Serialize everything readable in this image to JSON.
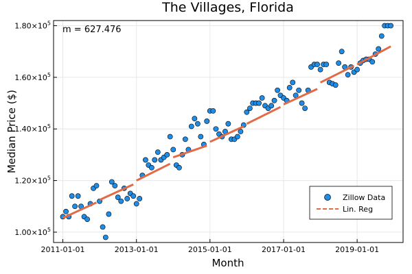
{
  "chart_data": {
    "type": "scatter",
    "title": "The Villages, Florida",
    "xlabel": "Month",
    "ylabel": "Median Price ($)",
    "annotation": "m = 627.476",
    "xlim": [
      "2010-10-01",
      "2020-04-01"
    ],
    "ylim": [
      96000,
      182000
    ],
    "x_ticks": [
      "2011-01-01",
      "2013-01-01",
      "2015-01-01",
      "2017-01-01",
      "2019-01-01"
    ],
    "y_ticks": [
      {
        "value": 100000,
        "mantissa": "1.00",
        "base": "×10",
        "exp": "5"
      },
      {
        "value": 120000,
        "mantissa": "1.20",
        "base": "×10",
        "exp": "5"
      },
      {
        "value": 140000,
        "mantissa": "1.40",
        "base": "×10",
        "exp": "5"
      },
      {
        "value": 160000,
        "mantissa": "1.60",
        "base": "×10",
        "exp": "5"
      },
      {
        "value": 180000,
        "mantissa": "1.80",
        "base": "×10",
        "exp": "5"
      }
    ],
    "grid": true,
    "legend_position": "bottom-right",
    "series": [
      {
        "name": "Zillow Data",
        "kind": "scatter",
        "color": "#1f8ce6",
        "x": [
          "2011-01-01",
          "2011-02-01",
          "2011-03-01",
          "2011-04-01",
          "2011-05-01",
          "2011-06-01",
          "2011-07-01",
          "2011-08-01",
          "2011-09-01",
          "2011-10-01",
          "2011-11-01",
          "2011-12-01",
          "2012-01-01",
          "2012-02-01",
          "2012-03-01",
          "2012-04-01",
          "2012-05-01",
          "2012-06-01",
          "2012-07-01",
          "2012-08-01",
          "2012-09-01",
          "2012-10-01",
          "2012-11-01",
          "2012-12-01",
          "2013-01-01",
          "2013-02-01",
          "2013-03-01",
          "2013-04-01",
          "2013-05-01",
          "2013-06-01",
          "2013-07-01",
          "2013-08-01",
          "2013-09-01",
          "2013-10-01",
          "2013-11-01",
          "2013-12-01",
          "2014-01-01",
          "2014-02-01",
          "2014-03-01",
          "2014-04-01",
          "2014-05-01",
          "2014-06-01",
          "2014-07-01",
          "2014-08-01",
          "2014-09-01",
          "2014-10-01",
          "2014-11-01",
          "2014-12-01",
          "2015-01-01",
          "2015-02-01",
          "2015-03-01",
          "2015-04-01",
          "2015-05-01",
          "2015-06-01",
          "2015-07-01",
          "2015-08-01",
          "2015-09-01",
          "2015-10-01",
          "2015-11-01",
          "2015-12-01",
          "2016-01-01",
          "2016-02-01",
          "2016-03-01",
          "2016-04-01",
          "2016-05-01",
          "2016-06-01",
          "2016-07-01",
          "2016-08-01",
          "2016-09-01",
          "2016-10-01",
          "2016-11-01",
          "2016-12-01",
          "2017-01-01",
          "2017-02-01",
          "2017-03-01",
          "2017-04-01",
          "2017-05-01",
          "2017-06-01",
          "2017-07-01",
          "2017-08-01",
          "2017-09-01",
          "2017-10-01",
          "2017-11-01",
          "2017-12-01",
          "2018-01-01",
          "2018-02-01",
          "2018-03-01",
          "2018-04-01",
          "2018-05-01",
          "2018-06-01",
          "2018-07-01",
          "2018-08-01",
          "2018-09-01",
          "2018-10-01",
          "2018-11-01",
          "2018-12-01",
          "2019-01-01",
          "2019-02-01",
          "2019-03-01",
          "2019-04-01",
          "2019-05-01",
          "2019-06-01",
          "2019-07-01",
          "2019-08-01",
          "2019-09-01",
          "2019-10-01",
          "2019-11-01",
          "2019-12-01"
        ],
        "y": [
          106000,
          108000,
          106000,
          114000,
          110000,
          114000,
          110000,
          106000,
          105000,
          111000,
          117000,
          118000,
          112000,
          102000,
          98000,
          107000,
          119500,
          118000,
          113500,
          112000,
          117000,
          113000,
          115000,
          114000,
          111000,
          113000,
          122000,
          128000,
          126000,
          125000,
          128000,
          131000,
          128000,
          129000,
          130000,
          137000,
          132000,
          126000,
          125000,
          130000,
          136000,
          132000,
          141000,
          144000,
          142000,
          137000,
          134000,
          143000,
          147000,
          147000,
          140000,
          138000,
          137000,
          139000,
          142000,
          136000,
          136000,
          137000,
          139000,
          141500,
          146500,
          148000,
          150000,
          150000,
          150000,
          152000,
          149000,
          148000,
          149000,
          151000,
          155000,
          153000,
          152000,
          151000,
          156000,
          158000,
          153000,
          155000,
          150000,
          148000,
          155000,
          164000,
          165000,
          165000,
          163000,
          165000,
          165000,
          158000,
          157500,
          157000,
          165500,
          170000,
          164000,
          161000,
          164000,
          162000,
          163000,
          165500,
          166500,
          167000,
          167000,
          166000,
          169000,
          171000,
          176000,
          180000,
          180000,
          180000
        ]
      },
      {
        "name": "Lin. Reg",
        "kind": "line",
        "dashed": true,
        "color": "#e26a47",
        "segments": [
          {
            "x": [
              "2011-01-01",
              "2011-12-01"
            ],
            "y": [
              105500,
              111500
            ]
          },
          {
            "x": [
              "2012-01-01",
              "2012-12-01"
            ],
            "y": [
              112500,
              118500
            ]
          },
          {
            "x": [
              "2013-01-01",
              "2013-12-01"
            ],
            "y": [
              120000,
              126500
            ]
          },
          {
            "x": [
              "2014-01-01",
              "2014-12-01"
            ],
            "y": [
              129000,
              133500
            ]
          },
          {
            "x": [
              "2015-01-01",
              "2015-12-01"
            ],
            "y": [
              135000,
              141000
            ]
          },
          {
            "x": [
              "2016-01-01",
              "2016-12-01"
            ],
            "y": [
              142000,
              148500
            ]
          },
          {
            "x": [
              "2017-01-01",
              "2017-12-01"
            ],
            "y": [
              149500,
              155500
            ]
          },
          {
            "x": [
              "2018-01-01",
              "2018-12-01"
            ],
            "y": [
              158000,
              164500
            ]
          },
          {
            "x": [
              "2019-01-01",
              "2019-12-01"
            ],
            "y": [
              165000,
              172000
            ]
          }
        ]
      }
    ]
  }
}
